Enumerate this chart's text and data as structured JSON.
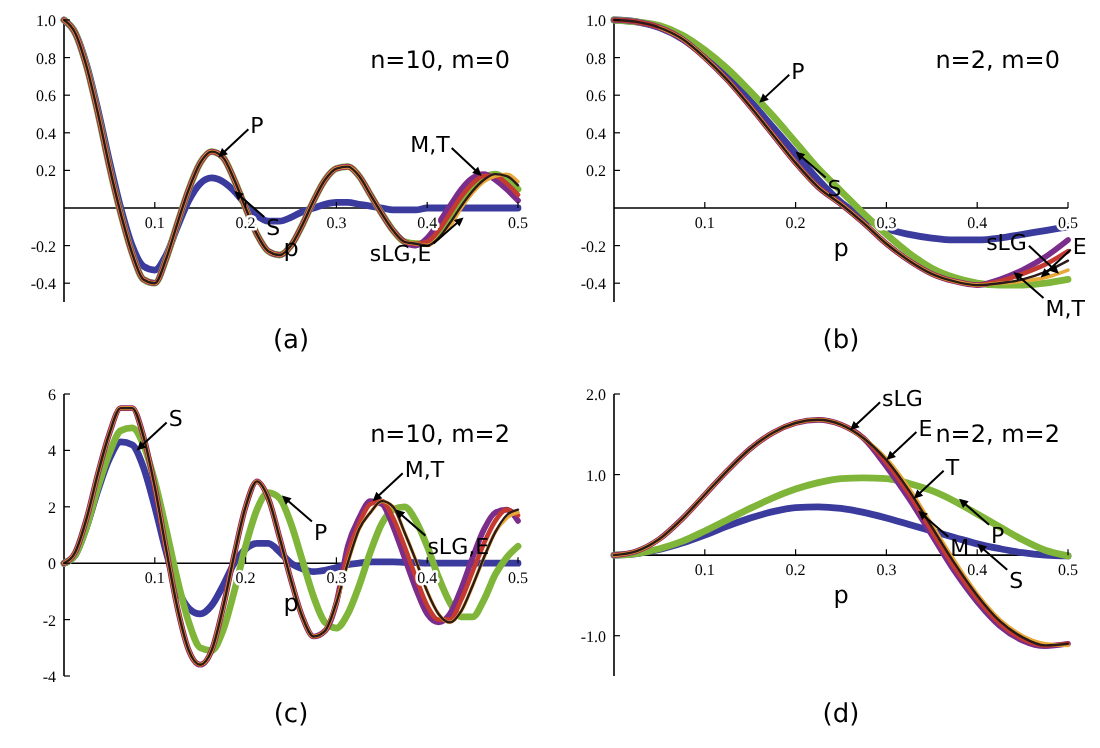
{
  "chart_data": [
    {
      "type": "line",
      "title": "(a)",
      "xlabel": "p",
      "annotations": [
        "n=10, m=0",
        {
          "text": "P",
          "x": 0.17,
          "y": 0.27
        },
        {
          "text": "S",
          "x": 0.1875,
          "y": 0.09
        },
        {
          "text": "M,T",
          "x": 0.46,
          "y": 0.17
        },
        {
          "text": "sLG,E",
          "x": 0.44,
          "y": -0.05
        }
      ],
      "x": [
        0,
        0.0125,
        0.025,
        0.0375,
        0.05,
        0.0625,
        0.075,
        0.0875,
        0.1,
        0.1125,
        0.125,
        0.1375,
        0.15,
        0.1625,
        0.175,
        0.1875,
        0.2,
        0.2125,
        0.225,
        0.2375,
        0.25,
        0.2625,
        0.275,
        0.2875,
        0.3,
        0.3125,
        0.325,
        0.3375,
        0.35,
        0.3625,
        0.375,
        0.3875,
        0.4,
        0.4125,
        0.425,
        0.4375,
        0.45,
        0.4625,
        0.475,
        0.4875,
        0.5
      ],
      "series": [
        {
          "color": "#3b3b9e",
          "values": [
            1.0,
            0.93,
            0.76,
            0.52,
            0.25,
            0.0,
            -0.2,
            -0.31,
            -0.33,
            -0.25,
            -0.1,
            0.04,
            0.13,
            0.16,
            0.14,
            0.09,
            0.02,
            -0.04,
            -0.07,
            -0.07,
            -0.05,
            -0.02,
            0.0,
            0.02,
            0.03,
            0.03,
            0.02,
            0.01,
            0.0,
            -0.01,
            -0.01,
            -0.01,
            0.0,
            0.0,
            0.0,
            0.0,
            0.0,
            0.0,
            0.0,
            0.0,
            0.0
          ]
        },
        {
          "color": "#7fb539",
          "values": [
            1.0,
            0.93,
            0.75,
            0.5,
            0.22,
            -0.03,
            -0.24,
            -0.38,
            -0.4,
            -0.27,
            -0.08,
            0.1,
            0.24,
            0.3,
            0.27,
            0.15,
            0.0,
            -0.14,
            -0.23,
            -0.25,
            -0.2,
            -0.09,
            0.04,
            0.15,
            0.21,
            0.22,
            0.17,
            0.07,
            -0.03,
            -0.12,
            -0.18,
            -0.19,
            -0.19,
            -0.14,
            -0.06,
            0.03,
            0.11,
            0.16,
            0.18,
            0.15,
            0.1
          ]
        },
        {
          "color": "#7b2d8b",
          "values": [
            1.0,
            0.93,
            0.75,
            0.5,
            0.22,
            -0.03,
            -0.24,
            -0.38,
            -0.4,
            -0.27,
            -0.08,
            0.1,
            0.24,
            0.3,
            0.27,
            0.15,
            0.0,
            -0.14,
            -0.23,
            -0.25,
            -0.2,
            -0.09,
            0.04,
            0.15,
            0.21,
            0.22,
            0.17,
            0.07,
            -0.03,
            -0.12,
            -0.18,
            -0.2,
            -0.16,
            -0.08,
            0.01,
            0.1,
            0.16,
            0.18,
            0.15,
            0.1,
            0.04
          ]
        },
        {
          "color": "#c43a31",
          "values": [
            1.0,
            0.93,
            0.75,
            0.5,
            0.22,
            -0.03,
            -0.24,
            -0.38,
            -0.4,
            -0.27,
            -0.08,
            0.1,
            0.24,
            0.3,
            0.27,
            0.15,
            0.0,
            -0.14,
            -0.23,
            -0.25,
            -0.2,
            -0.09,
            0.04,
            0.15,
            0.21,
            0.22,
            0.17,
            0.07,
            -0.03,
            -0.12,
            -0.18,
            -0.19,
            -0.18,
            -0.12,
            -0.03,
            0.06,
            0.13,
            0.17,
            0.17,
            0.13,
            0.07
          ]
        },
        {
          "color": "#e8a838",
          "values": [
            1.0,
            0.93,
            0.75,
            0.5,
            0.22,
            -0.03,
            -0.24,
            -0.38,
            -0.4,
            -0.27,
            -0.08,
            0.1,
            0.24,
            0.3,
            0.27,
            0.15,
            0.0,
            -0.14,
            -0.23,
            -0.25,
            -0.2,
            -0.09,
            0.04,
            0.15,
            0.21,
            0.22,
            0.17,
            0.07,
            -0.03,
            -0.12,
            -0.18,
            -0.19,
            -0.2,
            -0.16,
            -0.1,
            0.0,
            0.08,
            0.14,
            0.17,
            0.18,
            0.14
          ]
        },
        {
          "color": "#2a1a1a",
          "values": [
            1.0,
            0.93,
            0.75,
            0.5,
            0.22,
            -0.03,
            -0.24,
            -0.38,
            -0.4,
            -0.27,
            -0.08,
            0.1,
            0.24,
            0.3,
            0.27,
            0.15,
            0.0,
            -0.14,
            -0.23,
            -0.25,
            -0.2,
            -0.09,
            0.04,
            0.15,
            0.21,
            0.22,
            0.17,
            0.07,
            -0.03,
            -0.12,
            -0.18,
            -0.19,
            -0.2,
            -0.16,
            -0.08,
            0.01,
            0.09,
            0.15,
            0.18,
            0.17,
            0.12
          ]
        }
      ],
      "xlim": [
        0,
        0.5
      ],
      "ylim": [
        -0.5,
        1.0
      ],
      "xticks": [
        0.1,
        0.2,
        0.3,
        0.4,
        0.5
      ],
      "yticks": [
        -0.4,
        -0.2,
        0.2,
        0.4,
        0.6,
        0.8,
        {
          "value": 1,
          "label": "1.0"
        }
      ]
    },
    {
      "type": "line",
      "title": "(b)",
      "xlabel": "p",
      "annotations": [
        "n=2, m=0",
        {
          "text": "P",
          "x": 0.16,
          "y": 0.56
        },
        {
          "text": "S",
          "x": 0.2,
          "y": 0.3
        },
        {
          "text": "E",
          "x": 0.47,
          "y": -0.37
        },
        {
          "text": "M,T",
          "x": 0.44,
          "y": -0.34
        },
        {
          "text": "sLG",
          "x": 0.49,
          "y": -0.35
        }
      ],
      "x": [
        0,
        0.025,
        0.05,
        0.075,
        0.1,
        0.125,
        0.15,
        0.175,
        0.2,
        0.225,
        0.25,
        0.275,
        0.3,
        0.325,
        0.35,
        0.375,
        0.4,
        0.425,
        0.45,
        0.475,
        0.5
      ],
      "series": [
        {
          "color": "#3b3b9e",
          "values": [
            1.0,
            0.99,
            0.96,
            0.9,
            0.81,
            0.7,
            0.57,
            0.43,
            0.29,
            0.15,
            0.03,
            -0.05,
            -0.11,
            -0.14,
            -0.16,
            -0.17,
            -0.17,
            -0.16,
            -0.14,
            -0.12,
            -0.1
          ]
        },
        {
          "color": "#7fb539",
          "values": [
            1.0,
            0.99,
            0.97,
            0.92,
            0.84,
            0.74,
            0.62,
            0.49,
            0.35,
            0.21,
            0.09,
            -0.03,
            -0.14,
            -0.24,
            -0.32,
            -0.37,
            -0.4,
            -0.41,
            -0.41,
            -0.4,
            -0.38
          ]
        },
        {
          "color": "#7b2d8b",
          "values": [
            1.0,
            0.99,
            0.96,
            0.9,
            0.8,
            0.68,
            0.54,
            0.39,
            0.24,
            0.11,
            0.02,
            -0.08,
            -0.19,
            -0.28,
            -0.35,
            -0.39,
            -0.41,
            -0.38,
            -0.33,
            -0.26,
            -0.17
          ]
        },
        {
          "color": "#c43a31",
          "values": [
            1.0,
            0.99,
            0.96,
            0.9,
            0.8,
            0.68,
            0.54,
            0.39,
            0.24,
            0.11,
            0.02,
            -0.08,
            -0.19,
            -0.28,
            -0.35,
            -0.39,
            -0.41,
            -0.39,
            -0.35,
            -0.3,
            -0.23
          ]
        },
        {
          "color": "#e8a838",
          "values": [
            null,
            null,
            0.96,
            0.9,
            0.8,
            0.68,
            0.54,
            0.39,
            0.24,
            0.11,
            0.02,
            -0.08,
            -0.19,
            -0.28,
            -0.35,
            -0.39,
            -0.41,
            -0.4,
            -0.39,
            -0.37,
            -0.33
          ]
        },
        {
          "color": "#2a1a1a",
          "values": [
            1.0,
            0.99,
            0.96,
            0.9,
            0.8,
            0.68,
            0.54,
            0.39,
            0.24,
            0.11,
            0.02,
            -0.08,
            -0.19,
            -0.28,
            -0.35,
            -0.39,
            -0.41,
            -0.4,
            -0.38,
            -0.34,
            -0.28
          ]
        }
      ],
      "xlim": [
        0,
        0.5
      ],
      "ylim": [
        -0.5,
        1.0
      ],
      "xticks": [
        0.1,
        0.2,
        0.3,
        0.4,
        0.5
      ],
      "yticks": [
        -0.4,
        -0.2,
        0.2,
        0.4,
        0.6,
        0.8,
        {
          "value": 1,
          "label": "1.0"
        }
      ]
    },
    {
      "type": "line",
      "title": "(c)",
      "xlabel": "p",
      "annotations": [
        "n=10, m=2",
        {
          "text": "S",
          "x": 0.08,
          "y": 4.0
        },
        {
          "text": "P",
          "x": 0.24,
          "y": 2.4
        },
        {
          "text": "M,T",
          "x": 0.34,
          "y": 2.2
        },
        {
          "text": "sLG,E",
          "x": 0.365,
          "y": 1.9
        }
      ],
      "x": [
        0,
        0.0125,
        0.025,
        0.0375,
        0.05,
        0.0625,
        0.075,
        0.0875,
        0.1,
        0.1125,
        0.125,
        0.1375,
        0.15,
        0.1625,
        0.175,
        0.1875,
        0.2,
        0.2125,
        0.225,
        0.2375,
        0.25,
        0.2625,
        0.275,
        0.2875,
        0.3,
        0.3125,
        0.325,
        0.3375,
        0.35,
        0.3625,
        0.375,
        0.3875,
        0.4,
        0.4125,
        0.425,
        0.4375,
        0.45,
        0.4625,
        0.475,
        0.4875,
        0.5
      ],
      "series": [
        {
          "color": "#3b3b9e",
          "values": [
            0,
            0.3,
            1.3,
            2.6,
            3.7,
            4.3,
            4.2,
            3.4,
            2.0,
            0.4,
            -0.9,
            -1.6,
            -1.8,
            -1.5,
            -0.8,
            0.0,
            0.5,
            0.7,
            0.7,
            0.4,
            0.0,
            -0.2,
            -0.3,
            -0.25,
            -0.15,
            -0.05,
            0.0,
            0.05,
            0.05,
            0.05,
            0.03,
            0.02,
            0.0,
            0.0,
            0.0,
            0.0,
            0.0,
            0.0,
            0.0,
            0.0,
            0.0
          ]
        },
        {
          "color": "#7fb539",
          "values": [
            0,
            0.3,
            1.3,
            2.7,
            3.9,
            4.7,
            4.8,
            4.2,
            2.9,
            1.2,
            -0.6,
            -2.1,
            -3.0,
            -3.1,
            -2.4,
            -1.0,
            0.6,
            1.9,
            2.5,
            2.3,
            1.4,
            0.1,
            -1.2,
            -2.1,
            -2.3,
            -1.8,
            -0.8,
            0.4,
            1.4,
            1.9,
            2.0,
            1.5,
            0.6,
            -0.5,
            -1.4,
            -1.9,
            -1.9,
            -1.3,
            -0.4,
            0.2,
            0.6
          ]
        },
        {
          "color": "#7b2d8b",
          "values": [
            0,
            0.4,
            1.6,
            3.2,
            4.6,
            5.5,
            5.5,
            4.5,
            2.7,
            0.5,
            -1.6,
            -3.1,
            -3.6,
            -3.1,
            -1.6,
            0.3,
            2.0,
            2.9,
            2.3,
            0.9,
            -0.6,
            -1.9,
            -2.6,
            -2.4,
            -1.4,
            0.6,
            1.6,
            2.2,
            2.1,
            1.3,
            0.2,
            -0.9,
            -1.8,
            -2.1,
            -1.8,
            -0.9,
            0.2,
            1.2,
            1.8,
            1.9,
            1.5
          ]
        },
        {
          "color": "#c43a31",
          "values": [
            0,
            0.4,
            1.6,
            3.2,
            4.6,
            5.5,
            5.5,
            4.5,
            2.7,
            0.5,
            -1.6,
            -3.1,
            -3.6,
            -3.1,
            -1.6,
            0.3,
            2.0,
            2.9,
            2.3,
            0.9,
            -0.6,
            -1.9,
            -2.6,
            -2.4,
            -1.4,
            0.3,
            1.4,
            2.1,
            2.2,
            1.6,
            0.6,
            -0.5,
            -1.5,
            -2.0,
            -2.0,
            -1.3,
            -0.3,
            0.7,
            1.5,
            1.9,
            1.7
          ]
        },
        {
          "color": "#e8a838",
          "values": [
            0,
            0.4,
            1.6,
            3.2,
            4.6,
            5.5,
            5.5,
            4.5,
            2.7,
            0.5,
            -1.6,
            -3.1,
            -3.6,
            -3.1,
            -1.6,
            0.3,
            2.0,
            2.9,
            2.3,
            0.9,
            -0.6,
            -1.9,
            -2.6,
            -2.4,
            -1.4,
            0.0,
            1.2,
            1.8,
            2.2,
            2.0,
            1.1,
            0.1,
            -1.0,
            -1.8,
            -2.1,
            -1.7,
            -0.8,
            0.2,
            1.1,
            1.6,
            1.8
          ]
        },
        {
          "color": "#2a1a1a",
          "values": [
            0,
            0.4,
            1.6,
            3.2,
            4.6,
            5.5,
            5.5,
            4.5,
            2.7,
            0.5,
            -1.6,
            -3.1,
            -3.6,
            -3.1,
            -1.6,
            0.3,
            2.0,
            2.9,
            2.3,
            0.9,
            -0.6,
            -1.9,
            -2.6,
            -2.4,
            -1.4,
            0.0,
            1.2,
            1.8,
            2.2,
            2.0,
            1.1,
            0.1,
            -1.0,
            -1.8,
            -2.1,
            -1.7,
            -0.8,
            0.2,
            1.1,
            1.7,
            1.9
          ]
        }
      ],
      "xlim": [
        0,
        0.5
      ],
      "ylim": [
        -4,
        6
      ],
      "xticks": [
        0.1,
        0.2,
        0.3,
        0.4,
        0.5
      ],
      "yticks": [
        -4,
        -2,
        0,
        2,
        4,
        6
      ]
    },
    {
      "type": "line",
      "title": "(d)",
      "xlabel": "p",
      "annotations": [
        "n=2, m=2",
        {
          "text": "sLG",
          "x": 0.26,
          "y": 1.55
        },
        {
          "text": "P",
          "x": 0.38,
          "y": 0.7
        },
        {
          "text": "E",
          "x": 0.3,
          "y": 1.18
        },
        {
          "text": "S",
          "x": 0.4,
          "y": 0.14
        },
        {
          "text": "T",
          "x": 0.33,
          "y": 0.7
        },
        {
          "text": "M",
          "x": 0.335,
          "y": 0.55
        }
      ],
      "x": [
        0,
        0.025,
        0.05,
        0.075,
        0.1,
        0.125,
        0.15,
        0.175,
        0.2,
        0.225,
        0.25,
        0.275,
        0.3,
        0.325,
        0.35,
        0.375,
        0.4,
        0.425,
        0.45,
        0.475,
        0.5
      ],
      "series": [
        {
          "color": "#3b3b9e",
          "values": [
            0,
            0.02,
            0.07,
            0.15,
            0.25,
            0.36,
            0.46,
            0.54,
            0.59,
            0.6,
            0.58,
            0.53,
            0.46,
            0.38,
            0.3,
            0.22,
            0.14,
            0.08,
            0.03,
            0.0,
            -0.01
          ]
        },
        {
          "color": "#7fb539",
          "values": [
            0,
            0.02,
            0.08,
            0.17,
            0.3,
            0.44,
            0.58,
            0.71,
            0.82,
            0.9,
            0.95,
            0.96,
            0.95,
            0.89,
            0.8,
            0.67,
            0.51,
            0.35,
            0.19,
            0.06,
            -0.01
          ]
        },
        {
          "color": "#7b2d8b",
          "values": [
            0,
            0.05,
            0.2,
            0.45,
            0.75,
            1.05,
            1.32,
            1.52,
            1.64,
            1.68,
            1.62,
            1.45,
            1.1,
            0.7,
            0.25,
            -0.2,
            -0.58,
            -0.88,
            -1.06,
            -1.13,
            -1.1
          ]
        },
        {
          "color": "#c43a31",
          "values": [
            0,
            0.05,
            0.2,
            0.45,
            0.75,
            1.05,
            1.32,
            1.52,
            1.64,
            1.68,
            1.62,
            1.45,
            1.15,
            0.76,
            0.3,
            -0.15,
            -0.54,
            -0.85,
            -1.04,
            -1.12,
            -1.1
          ]
        },
        {
          "color": "#e8a838",
          "values": [
            0,
            0.05,
            0.2,
            0.45,
            0.75,
            1.05,
            1.32,
            1.52,
            1.64,
            1.68,
            1.62,
            1.45,
            1.2,
            0.83,
            0.38,
            -0.07,
            -0.48,
            -0.8,
            -1.0,
            -1.1,
            -1.12
          ]
        },
        {
          "color": "#2a1a1a",
          "values": [
            0,
            0.05,
            0.2,
            0.45,
            0.75,
            1.05,
            1.32,
            1.52,
            1.64,
            1.68,
            1.62,
            1.45,
            1.18,
            0.8,
            0.35,
            -0.1,
            -0.5,
            -0.82,
            -1.02,
            -1.12,
            -1.1
          ]
        }
      ],
      "xlim": [
        0,
        0.5
      ],
      "ylim": [
        -1.5,
        2.0
      ],
      "xticks": [
        0.1,
        0.2,
        0.3,
        0.4,
        0.5
      ],
      "yticks": [
        {
          "value": -1,
          "label": "-1.0"
        },
        {
          "value": 1,
          "label": "1.0"
        },
        {
          "value": 2,
          "label": "2.0"
        }
      ]
    }
  ]
}
